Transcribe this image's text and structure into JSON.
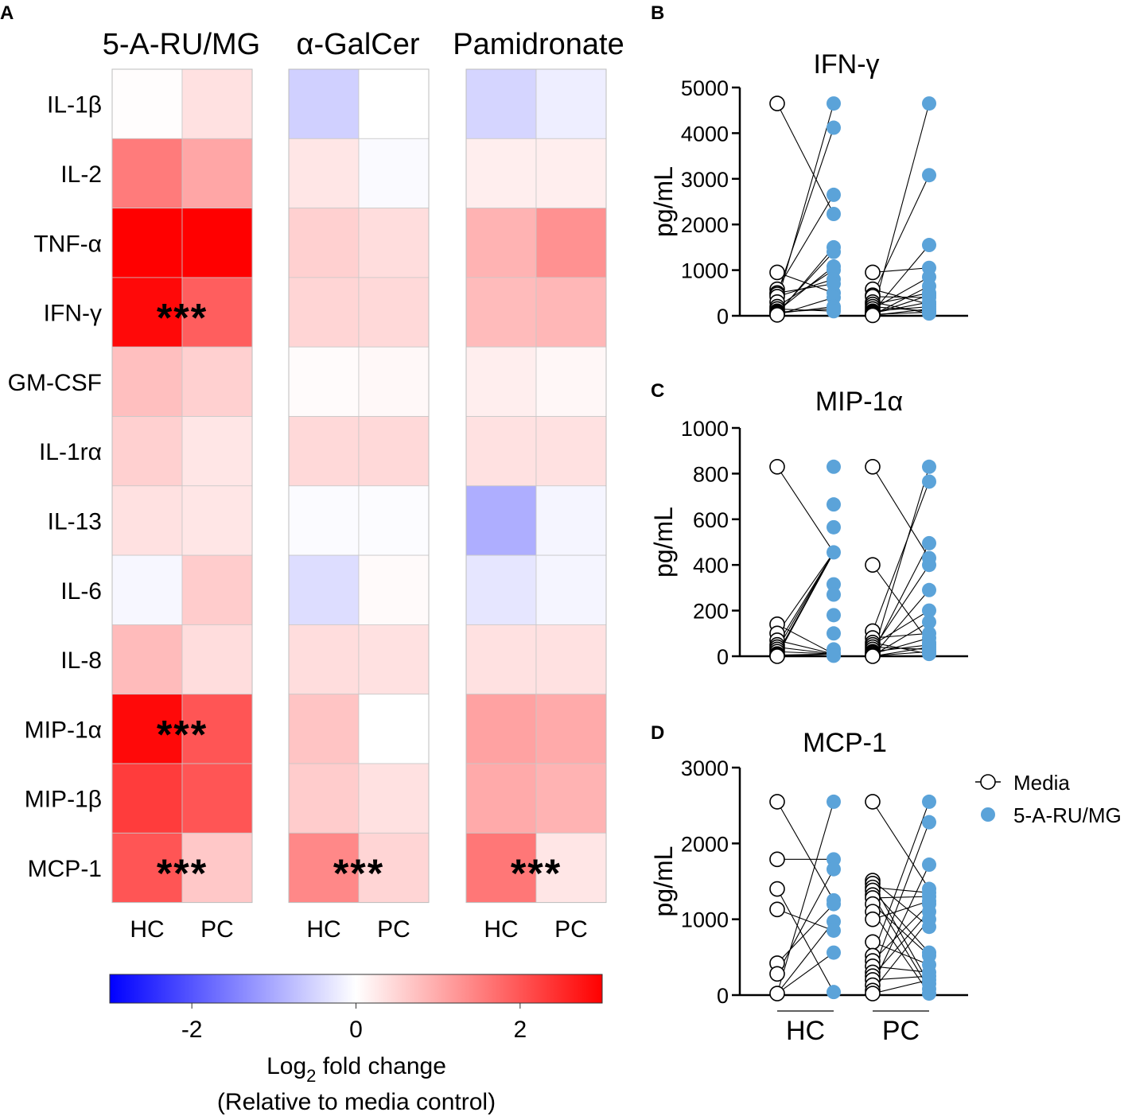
{
  "chart_data": [
    {
      "type": "heatmap",
      "panel_label": "A",
      "title": "",
      "groups": [
        "5-A-RU/MG",
        "α-GalCer",
        "Pamidronate"
      ],
      "rows": [
        "IL-1β",
        "IL-2",
        "TNF-α",
        "IFN-γ",
        "GM-CSF",
        "IL-1rα",
        "IL-13",
        "IL-6",
        "IL-8",
        "MIP-1α",
        "MIP-1β",
        "MCP-1"
      ],
      "columns": [
        "HC",
        "PC"
      ],
      "values": {
        "5-A-RU/MG": [
          [
            0.02,
            0.35
          ],
          [
            1.55,
            1.05
          ],
          [
            3.0,
            3.0
          ],
          [
            2.9,
            1.9
          ],
          [
            0.75,
            0.55
          ],
          [
            0.55,
            0.3
          ],
          [
            0.35,
            0.3
          ],
          [
            -0.1,
            0.6
          ],
          [
            0.8,
            0.4
          ],
          [
            2.9,
            2.0
          ],
          [
            2.3,
            2.0
          ],
          [
            2.0,
            0.65
          ]
        ],
        "α-GalCer": [
          [
            -0.55,
            0.0
          ],
          [
            0.3,
            -0.06
          ],
          [
            0.55,
            0.4
          ],
          [
            0.5,
            0.45
          ],
          [
            0.05,
            0.08
          ],
          [
            0.45,
            0.45
          ],
          [
            -0.05,
            -0.04
          ],
          [
            -0.4,
            0.06
          ],
          [
            0.4,
            0.35
          ],
          [
            0.7,
            0.0
          ],
          [
            0.6,
            0.35
          ],
          [
            1.4,
            0.5
          ]
        ],
        "Pamidronate": [
          [
            -0.5,
            -0.2
          ],
          [
            0.2,
            0.2
          ],
          [
            0.9,
            1.3
          ],
          [
            0.8,
            0.85
          ],
          [
            0.2,
            0.1
          ],
          [
            0.35,
            0.35
          ],
          [
            -0.95,
            -0.12
          ],
          [
            -0.3,
            -0.12
          ],
          [
            0.35,
            0.35
          ],
          [
            1.1,
            1.0
          ],
          [
            1.0,
            0.9
          ],
          [
            1.6,
            0.3
          ]
        ]
      },
      "significance": [
        {
          "group": "5-A-RU/MG",
          "row": "IFN-γ",
          "label": "***"
        },
        {
          "group": "5-A-RU/MG",
          "row": "MIP-1α",
          "label": "***"
        },
        {
          "group": "5-A-RU/MG",
          "row": "MCP-1",
          "label": "***"
        },
        {
          "group": "α-GalCer",
          "row": "MCP-1",
          "label": "***"
        },
        {
          "group": "Pamidronate",
          "row": "MCP-1",
          "label": "***"
        }
      ],
      "colorbar": {
        "min": -3,
        "max": 3,
        "ticks": [
          -2,
          0,
          2
        ],
        "tick_labels": [
          "-2",
          "0",
          "2"
        ],
        "colors": {
          "low": "#0000ff",
          "mid": "#ffffff",
          "high": "#ff0000"
        },
        "label_line1_prefix": "Log",
        "label_line1_sub": "2",
        "label_line1_suffix": " fold change",
        "label_line2": "(Relative to media control)"
      }
    },
    {
      "type": "scatter",
      "panel_label": "B",
      "title": "IFN-γ",
      "ylabel": "pg/mL",
      "ylim": [
        0,
        5000
      ],
      "yticks": [
        0,
        1000,
        2000,
        3000,
        4000,
        5000
      ],
      "categories": [
        "HC",
        "PC"
      ],
      "HC": {
        "media": [
          4650,
          950,
          580,
          500,
          470,
          420,
          300,
          200,
          150,
          100,
          80,
          60,
          50,
          30,
          20
        ],
        "treated": [
          4650,
          4120,
          2650,
          2230,
          1500,
          1400,
          1080,
          1000,
          800,
          700,
          500,
          400,
          200,
          150,
          100
        ]
      },
      "PC": {
        "media": [
          950,
          580,
          450,
          420,
          300,
          250,
          200,
          150,
          100,
          80,
          60,
          50,
          40,
          30,
          20,
          10
        ],
        "treated": [
          4650,
          3080,
          1550,
          1050,
          850,
          650,
          500,
          450,
          400,
          300,
          250,
          200,
          150,
          100,
          80,
          50
        ]
      }
    },
    {
      "type": "scatter",
      "panel_label": "C",
      "title": "MIP-1α",
      "ylabel": "pg/mL",
      "ylim": [
        0,
        1000
      ],
      "yticks": [
        0,
        200,
        400,
        600,
        800,
        1000
      ],
      "categories": [
        "HC",
        "PC"
      ],
      "HC": {
        "media": [
          830,
          140,
          100,
          70,
          50,
          40,
          30,
          20,
          10,
          5,
          3,
          2,
          1,
          0
        ],
        "treated": [
          830,
          665,
          565,
          455,
          315,
          270,
          180,
          100,
          30,
          15,
          10,
          5,
          3,
          2
        ]
      },
      "PC": {
        "media": [
          830,
          400,
          110,
          80,
          60,
          50,
          40,
          30,
          20,
          15,
          10,
          5,
          3,
          2,
          1,
          0
        ],
        "treated": [
          830,
          765,
          495,
          430,
          400,
          290,
          200,
          150,
          100,
          80,
          60,
          50,
          40,
          30,
          20,
          10
        ]
      }
    },
    {
      "type": "scatter",
      "panel_label": "D",
      "title": "MCP-1",
      "ylabel": "pg/mL",
      "ylim": [
        0,
        3000
      ],
      "yticks": [
        0,
        1000,
        2000,
        3000
      ],
      "categories": [
        "HC",
        "PC"
      ],
      "legend": {
        "items": [
          "Media",
          "5-A-RU/MG"
        ],
        "placement": "right"
      },
      "HC": {
        "media": [
          2550,
          1790,
          1400,
          1130,
          420,
          280,
          20
        ],
        "treated": [
          2550,
          1790,
          1660,
          1250,
          1200,
          970,
          850,
          560,
          40
        ]
      },
      "PC": {
        "media": [
          2550,
          1510,
          1470,
          1420,
          1380,
          1320,
          1280,
          1200,
          1100,
          1000,
          700,
          520,
          450,
          380,
          300,
          250,
          200,
          130,
          60,
          20
        ],
        "treated": [
          2550,
          2280,
          1720,
          1400,
          1350,
          1300,
          1240,
          1200,
          1100,
          1000,
          900,
          560,
          520,
          400,
          300,
          250,
          200,
          150,
          80,
          20
        ]
      }
    }
  ]
}
